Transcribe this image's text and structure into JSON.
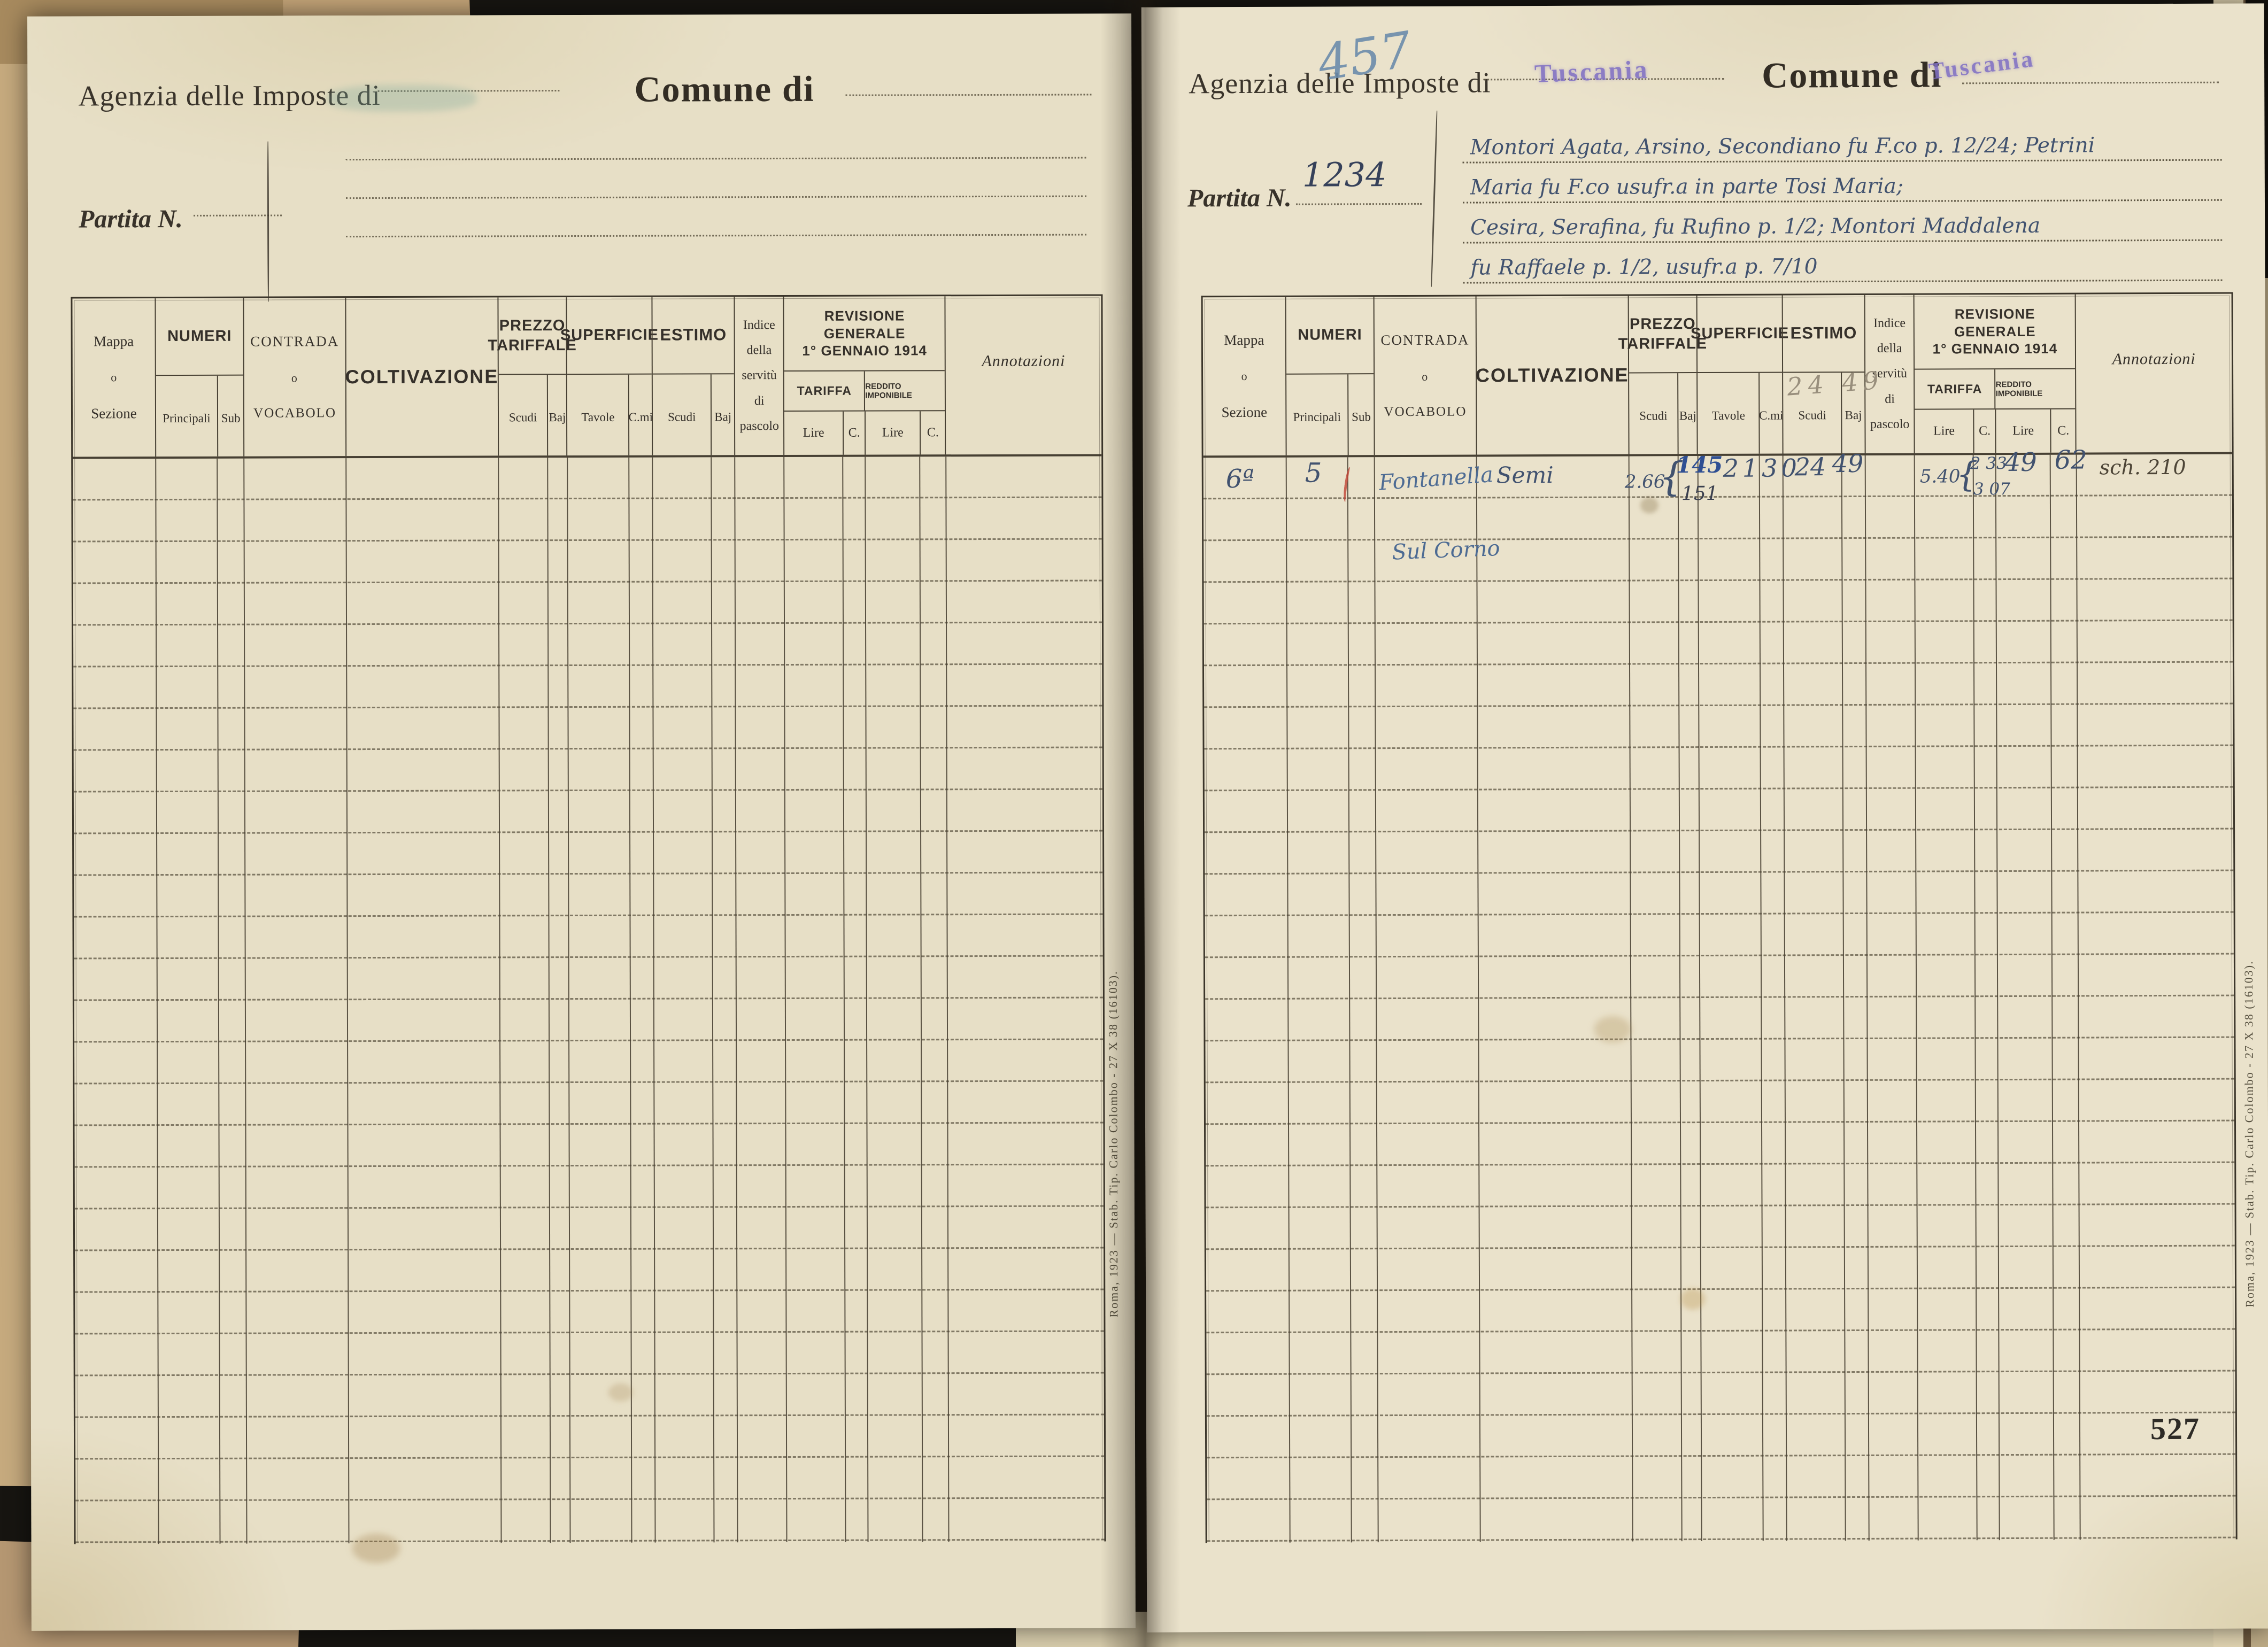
{
  "page_number": "527",
  "imprint": "Roma, 1923 — Stab. Tip. Carlo Colombo - 27 X 38 (16103).",
  "left_page": {
    "agenzia_label": "Agenzia delle Imposte di",
    "comune_label": "Comune di",
    "partita_label": "Partita N."
  },
  "right_page": {
    "agenzia_label": "Agenzia delle Imposte di",
    "agenzia_stamp": "Tuscania",
    "comune_label": "Comune di",
    "comune_stamp": "Tuscania",
    "partita_label": "Partita N.",
    "partita_value": "1234",
    "partita_old_number": "457",
    "owners_lines": [
      "Montori Agata, Arsino, Secondiano fu F.co p. 12/24; Petrini",
      "Maria fu F.co usufr.a in parte Tosi Maria;",
      "Cesira, Serafina, fu Rufino p. 1/2; Montori Maddalena",
      "fu Raffaele p. 1/2, usufr.a p. 7/10"
    ]
  },
  "table": {
    "headers": {
      "mappa_1": "Mappa",
      "mappa_2": "o",
      "mappa_3": "Sezione",
      "numeri": "NUMERI",
      "principali": "Principali",
      "sub": "Sub",
      "contrada_1": "CONTRADA",
      "contrada_2": "o",
      "contrada_3": "VOCABOLO",
      "coltivazione": "COLTIVAZIONE",
      "prezzo_1": "PREZZO",
      "prezzo_2": "TARIFFALE",
      "scudi": "Scudi",
      "baj": "Baj",
      "superficie": "SUPERFICIE",
      "tavole": "Tavole",
      "cmi": "C.mi",
      "estimo": "ESTIMO",
      "indice_1": "Indice",
      "indice_2": "della",
      "indice_3": "servitù",
      "indice_4": "di",
      "indice_5": "pascolo",
      "revisione_1": "REVISIONE GENERALE",
      "revisione_2": "1° GENNAIO 1914",
      "tariffa": "TARIFFA",
      "reddito": "REDDITO IMPONIBILE",
      "lire": "Lire",
      "c": "C.",
      "annotazioni": "Annotazioni"
    }
  },
  "entry_row": {
    "mappa": "6ª",
    "numero_principale": "5",
    "contrada_line1": "Fontanella",
    "contrada_line2": "Sul Corno",
    "coltivazione": "Semi",
    "prezzo_scudi": "2.66",
    "brace": "{",
    "prezzo_old": "145",
    "prezzo_new": "151",
    "superficie": "2130",
    "estimo_scudi": "24",
    "estimo_baj": "49",
    "estimo_pencil": "24 49",
    "tariffa_lire": "5.40",
    "tariffa_sub_1": "2 33",
    "tariffa_sub_2": "3 07",
    "reddito_lire": "49",
    "reddito_c": "62",
    "annotazione": "sch. 210"
  }
}
